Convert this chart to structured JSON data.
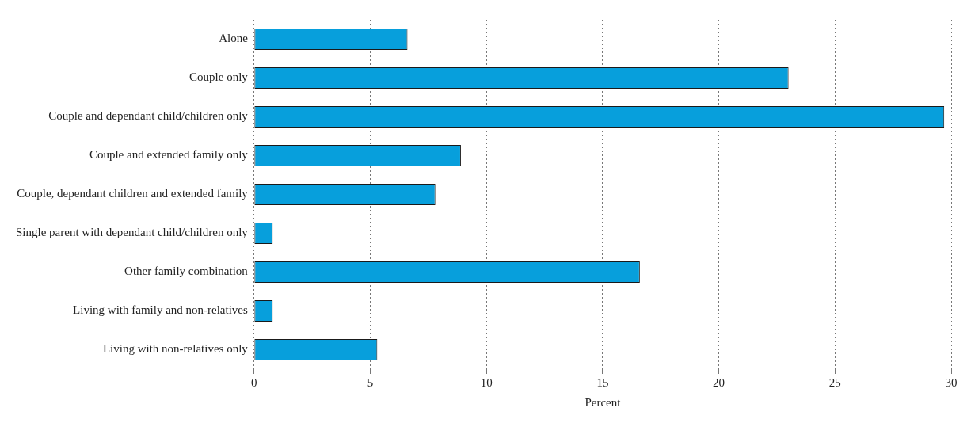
{
  "chart_data": {
    "type": "bar",
    "orientation": "horizontal",
    "xlabel": "Percent",
    "categories": [
      "Alone",
      "Couple only",
      "Couple and dependant child/children only",
      "Couple and extended family only",
      "Couple, dependant children and extended family",
      "Single parent with dependant child/children only",
      "Other family combination",
      "Living with family and non-relatives",
      "Living with non-relatives only"
    ],
    "values": [
      6.6,
      23.0,
      29.7,
      8.9,
      7.8,
      0.8,
      16.6,
      0.8,
      5.3
    ],
    "color": "#079fdc",
    "xlim": [
      0,
      30
    ],
    "xticks": [
      0,
      5,
      10,
      15,
      20,
      25,
      30
    ],
    "grid": "x",
    "legend": false
  }
}
